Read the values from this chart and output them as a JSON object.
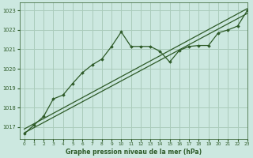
{
  "title": "Graphe pression niveau de la mer (hPa)",
  "background_color": "#cce8e0",
  "grid_color": "#aaccbb",
  "line_color": "#2d5a27",
  "xlim": [
    -0.5,
    23
  ],
  "ylim": [
    1016.4,
    1023.4
  ],
  "yticks": [
    1017,
    1018,
    1019,
    1020,
    1021,
    1022,
    1023
  ],
  "xticks": [
    0,
    1,
    2,
    3,
    4,
    5,
    6,
    7,
    8,
    9,
    10,
    11,
    12,
    13,
    14,
    15,
    16,
    17,
    18,
    19,
    20,
    21,
    22,
    23
  ],
  "trend1_x": [
    0,
    23
  ],
  "trend1_y": [
    1016.7,
    1022.85
  ],
  "trend2_x": [
    0,
    23
  ],
  "trend2_y": [
    1016.9,
    1023.1
  ],
  "wavy_x": [
    0,
    1,
    2,
    3,
    4,
    5,
    6,
    7,
    8,
    9,
    10,
    11,
    12,
    13,
    14,
    15,
    16,
    17,
    18,
    19,
    20,
    21,
    22,
    23
  ],
  "wavy_y": [
    1016.65,
    1017.1,
    1017.55,
    1018.45,
    1018.65,
    1019.25,
    1019.8,
    1020.2,
    1020.5,
    1021.15,
    1021.9,
    1021.15,
    1021.15,
    1021.15,
    1020.9,
    1020.35,
    1020.95,
    1021.15,
    1021.2,
    1021.2,
    1021.85,
    1022.0,
    1022.2,
    1023.0
  ]
}
